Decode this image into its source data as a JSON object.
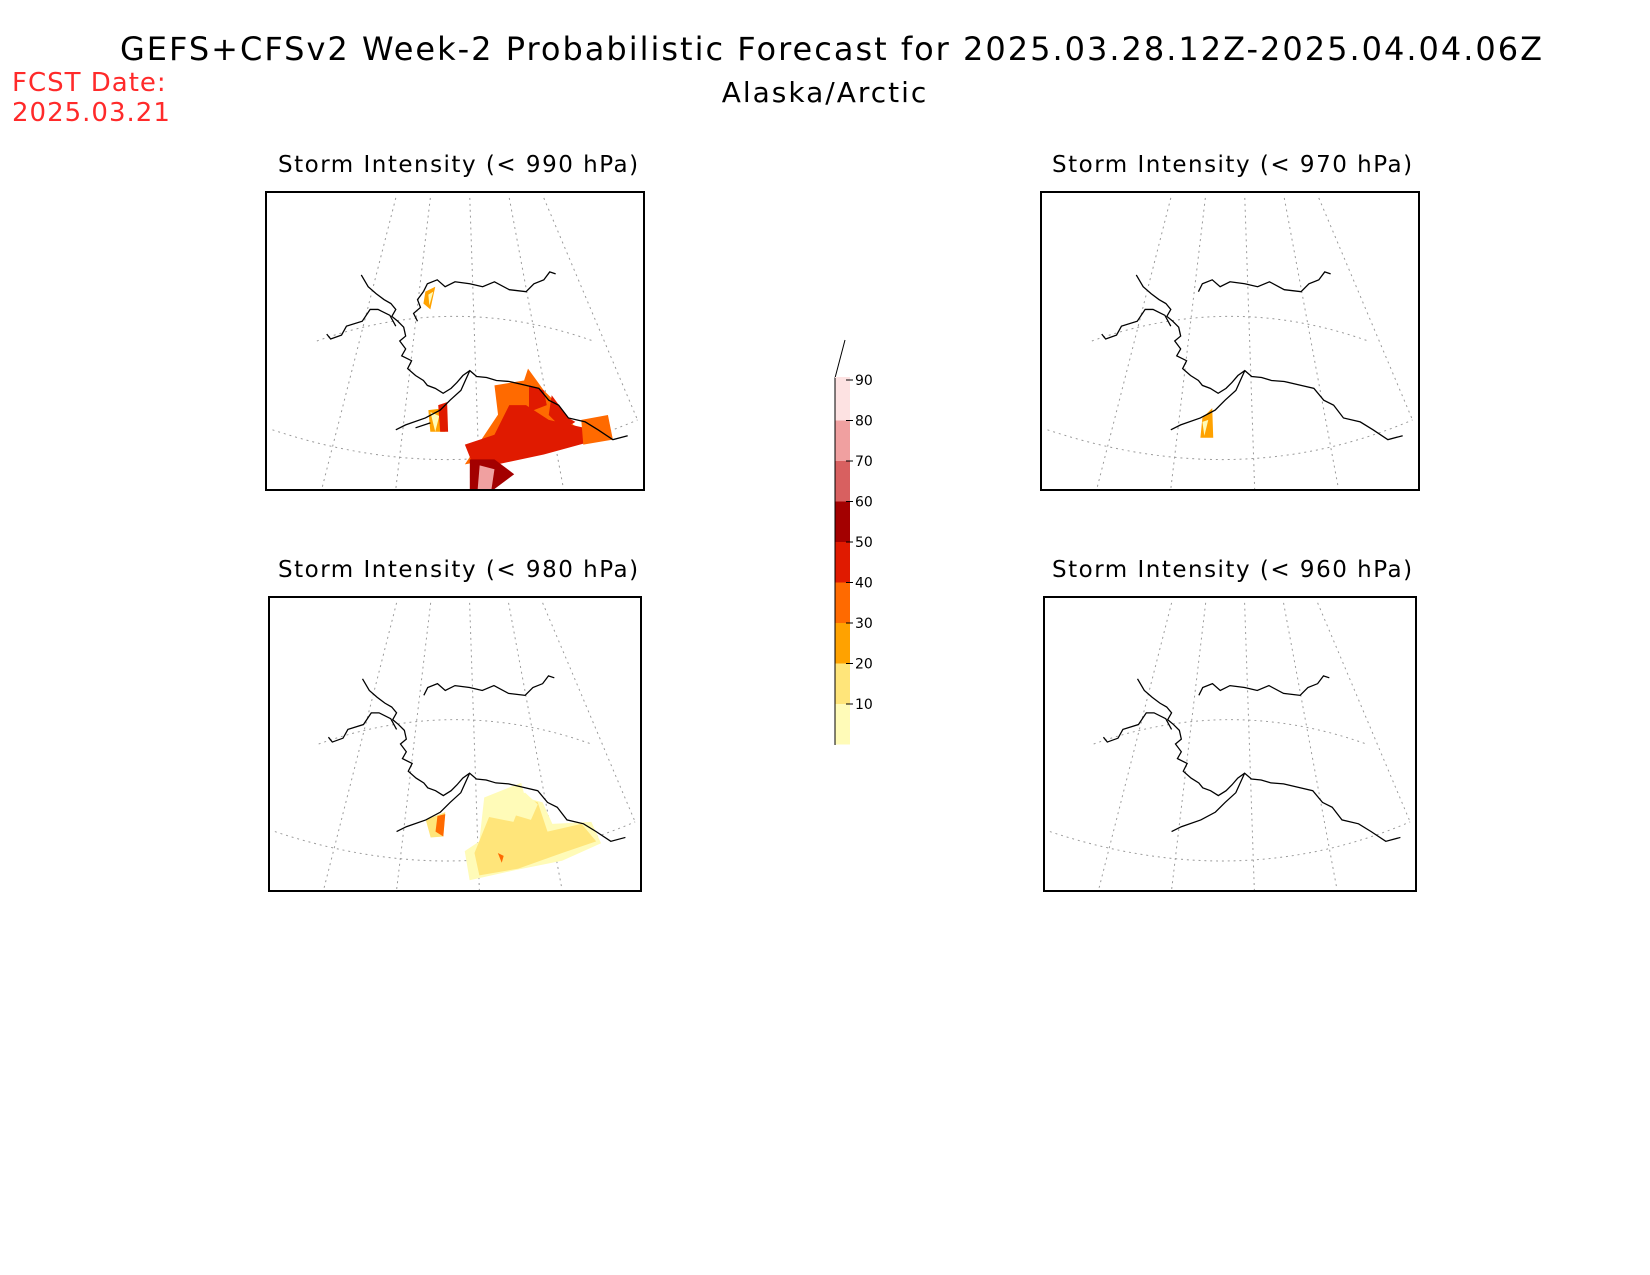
{
  "header": {
    "title": "GEFS+CFSv2 Week-2 Probabilistic Forecast for 2025.03.28.12Z-2025.04.04.06Z",
    "subtitle": "Alaska/Arctic",
    "fcst_date_label": "FCST Date:",
    "fcst_date_value": "2025.03.21"
  },
  "panels": [
    {
      "title": "Storm Intensity (< 990 hPa)"
    },
    {
      "title": "Storm Intensity (< 970 hPa)"
    },
    {
      "title": "Storm Intensity (< 980 hPa)"
    },
    {
      "title": "Storm Intensity (< 960 hPa)"
    }
  ],
  "colorbar": {
    "levels": [
      "10",
      "20",
      "30",
      "40",
      "50",
      "60",
      "70",
      "80",
      "90"
    ],
    "colors": [
      "#fffbb8",
      "#ffe57a",
      "#ffa200",
      "#ff6a00",
      "#e01a00",
      "#a30000",
      "#d86060",
      "#f0a0a0",
      "#fde2e2"
    ]
  }
}
